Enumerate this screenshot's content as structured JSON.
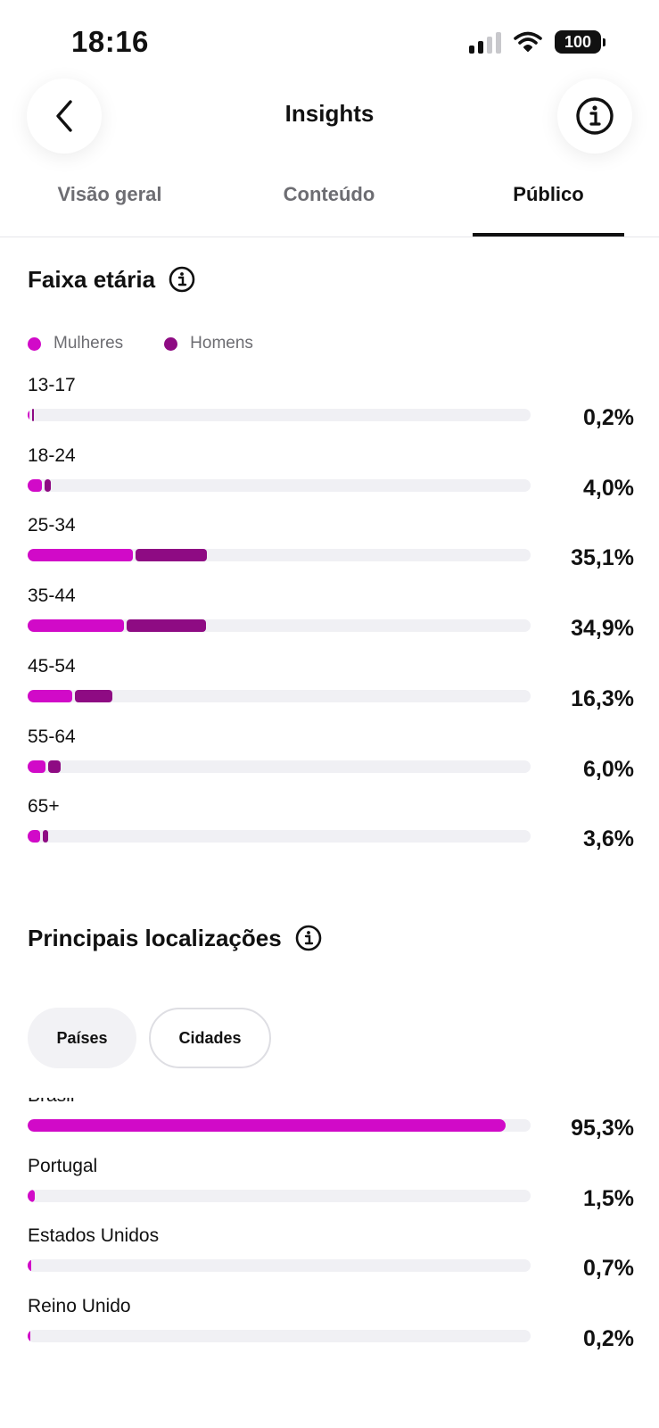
{
  "status_bar": {
    "time": "18:16",
    "battery": "100"
  },
  "header": {
    "title": "Insights"
  },
  "tabs": [
    {
      "label": "Visão geral",
      "active": false
    },
    {
      "label": "Conteúdo",
      "active": false
    },
    {
      "label": "Público",
      "active": true
    }
  ],
  "colors": {
    "women": "#d10ac8",
    "men": "#8e0b83",
    "track": "#f0f0f4",
    "tab_indicator": "#111111"
  },
  "age_section": {
    "title": "Faixa etária",
    "legend": {
      "women": "Mulheres",
      "men": "Homens"
    },
    "rows": [
      {
        "label": "13-17",
        "value": "0,2%",
        "women": 0.1,
        "men": 0.1
      },
      {
        "label": "18-24",
        "value": "4,0%",
        "women": 2.8,
        "men": 1.2
      },
      {
        "label": "25-34",
        "value": "35,1%",
        "women": 20.9,
        "men": 14.2
      },
      {
        "label": "35-44",
        "value": "34,9%",
        "women": 19.2,
        "men": 15.7
      },
      {
        "label": "45-54",
        "value": "16,3%",
        "women": 8.9,
        "men": 7.4
      },
      {
        "label": "55-64",
        "value": "6,0%",
        "women": 3.6,
        "men": 2.4
      },
      {
        "label": "65+",
        "value": "3,6%",
        "women": 2.5,
        "men": 1.1
      }
    ]
  },
  "locations_section": {
    "title": "Principais localizações",
    "filters": [
      {
        "label": "Países",
        "selected": true
      },
      {
        "label": "Cidades",
        "selected": false
      }
    ],
    "rows": [
      {
        "label": "Brasil",
        "value": "95,3%",
        "percent": 95.3
      },
      {
        "label": "Portugal",
        "value": "1,5%",
        "percent": 1.5
      },
      {
        "label": "Estados Unidos",
        "value": "0,7%",
        "percent": 0.7
      },
      {
        "label": "Reino Unido",
        "value": "0,2%",
        "percent": 0.2
      }
    ]
  }
}
